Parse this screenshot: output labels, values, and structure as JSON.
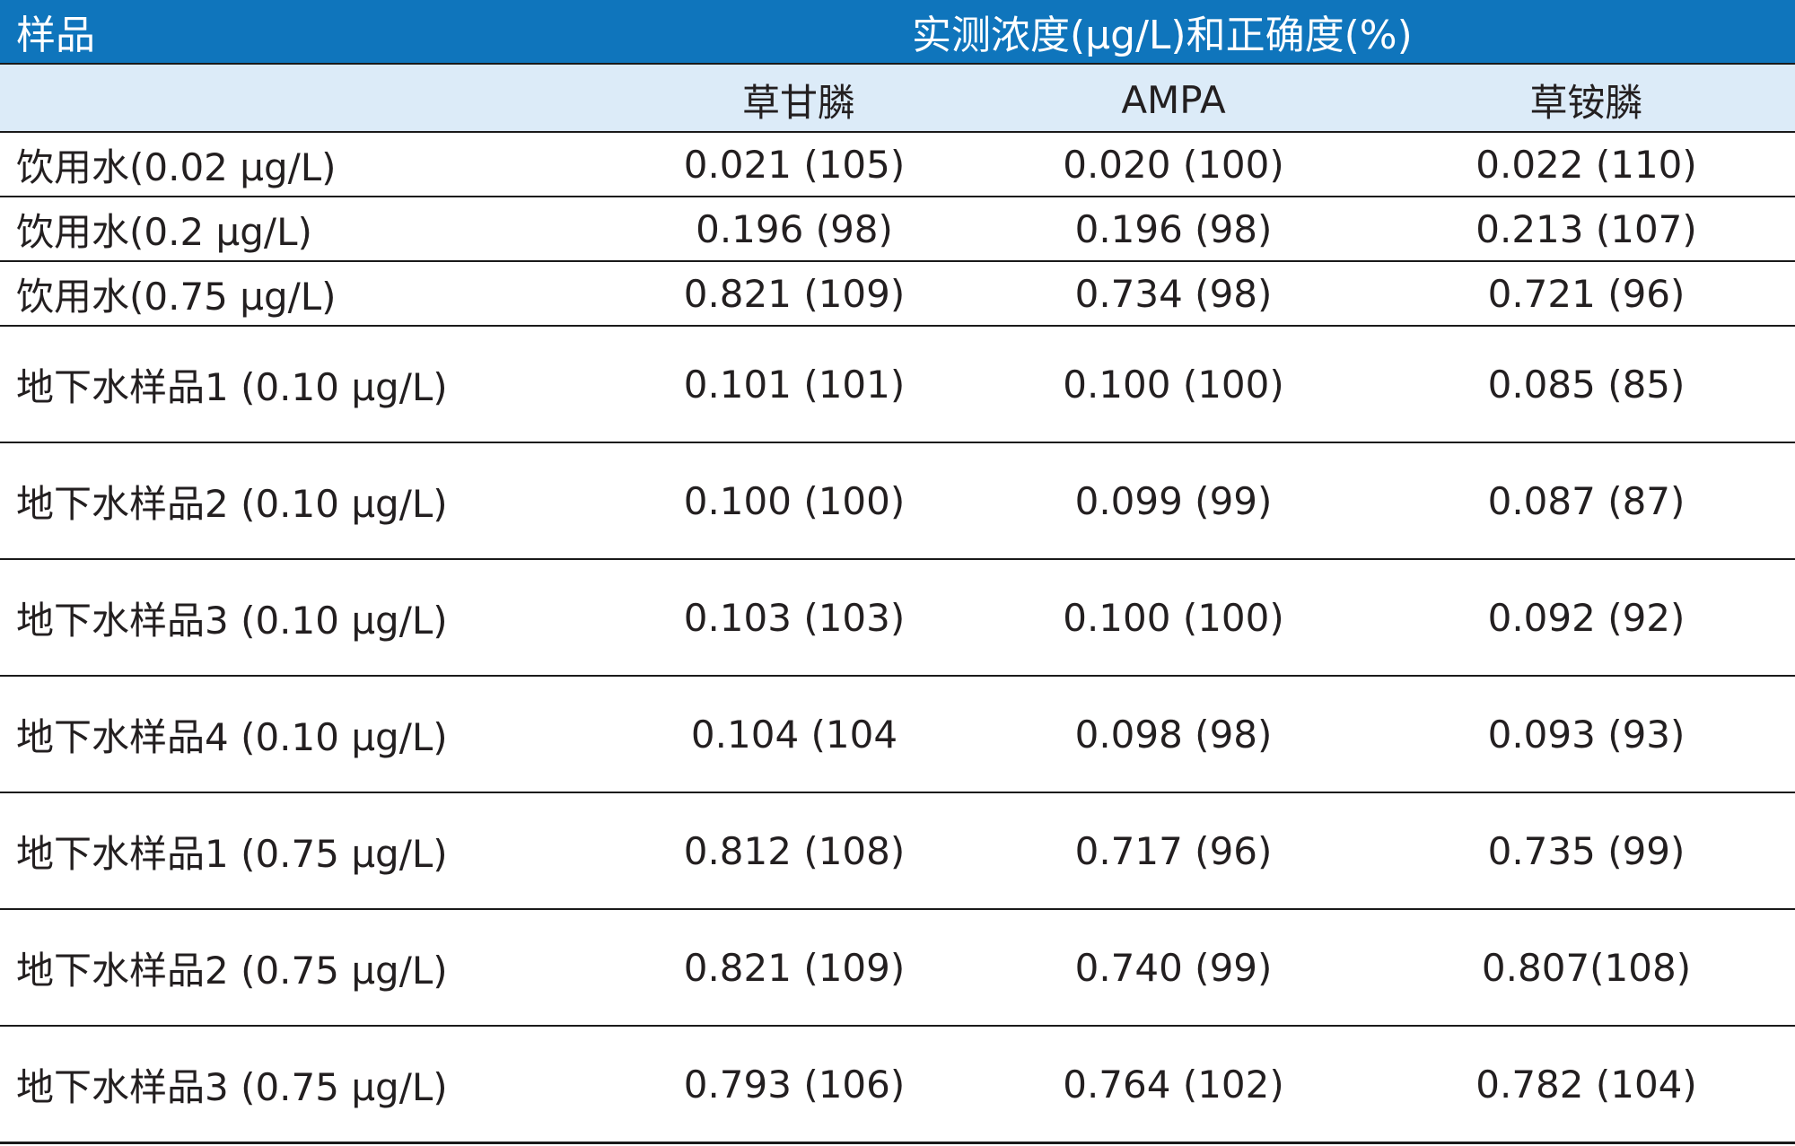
{
  "table": {
    "sample_header": "样品",
    "group_header": "实测浓度(μg/L)和正确度(%)",
    "columns": [
      "草甘膦",
      "AMPA",
      "草铵膦"
    ],
    "rows": [
      {
        "sample": "饮用水(0.02 μg/L)",
        "values": [
          "0.021 (105)",
          "0.020 (100)",
          "0.022 (110)"
        ],
        "size": "short"
      },
      {
        "sample": "饮用水(0.2 μg/L)",
        "values": [
          "0.196 (98)",
          "0.196 (98)",
          "0.213 (107)"
        ],
        "size": "short"
      },
      {
        "sample": "饮用水(0.75 μg/L)",
        "values": [
          "0.821 (109)",
          "0.734 (98)",
          "0.721 (96)"
        ],
        "size": "short"
      },
      {
        "sample": "地下水样品1 (0.10 μg/L)",
        "values": [
          "0.101 (101)",
          "0.100 (100)",
          "0.085 (85)"
        ],
        "size": "tall"
      },
      {
        "sample": "地下水样品2 (0.10 μg/L)",
        "values": [
          "0.100 (100)",
          "0.099 (99)",
          "0.087 (87)"
        ],
        "size": "tall"
      },
      {
        "sample": "地下水样品3 (0.10 μg/L)",
        "values": [
          "0.103 (103)",
          "0.100 (100)",
          "0.092 (92)"
        ],
        "size": "tall"
      },
      {
        "sample": "地下水样品4 (0.10 μg/L)",
        "values": [
          "0.104 (104",
          "0.098 (98)",
          "0.093 (93)"
        ],
        "size": "tall"
      },
      {
        "sample": "地下水样品1 (0.75 μg/L)",
        "values": [
          "0.812 (108)",
          "0.717 (96)",
          "0.735 (99)"
        ],
        "size": "tall"
      },
      {
        "sample": "地下水样品2 (0.75 μg/L)",
        "values": [
          "0.821 (109)",
          "0.740 (99)",
          "0.807(108)"
        ],
        "size": "tall"
      },
      {
        "sample": "地下水样品3 (0.75 μg/L)",
        "values": [
          "0.793 (106)",
          "0.764 (102)",
          "0.782 (104)"
        ],
        "size": "tall"
      }
    ]
  },
  "colors": {
    "header_bg": "#0f75bc",
    "subheader_bg": "#dcebf8",
    "text": "#231f20",
    "rule": "#1a1a1a"
  }
}
